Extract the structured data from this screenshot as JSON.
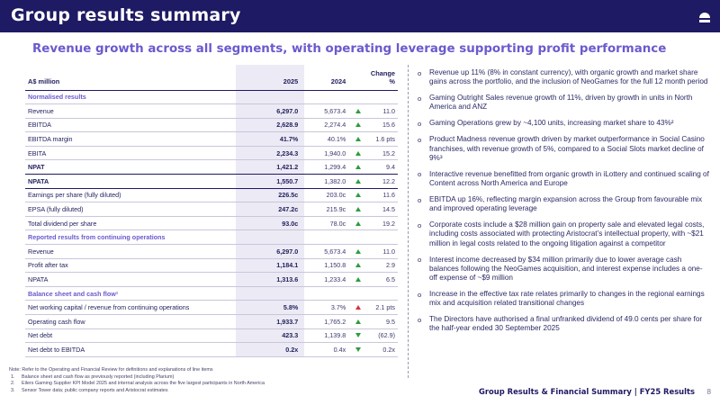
{
  "header": {
    "title": "Group results summary"
  },
  "subtitle": "Revenue growth across all segments, with operating leverage supporting profit performance",
  "table": {
    "headers": {
      "label": "A$ million",
      "y2025": "2025",
      "y2024": "2024",
      "change": "Change %"
    },
    "rows": [
      {
        "type": "section",
        "label": "Normalised results"
      },
      {
        "type": "row",
        "label": "Revenue",
        "v2025": "6,297.0",
        "v2024": "5,673.4",
        "arrow": "up",
        "change": "11.0"
      },
      {
        "type": "row",
        "label": "EBITDA",
        "v2025": "2,628.9",
        "v2024": "2,274.4",
        "arrow": "up",
        "change": "15.6"
      },
      {
        "type": "row",
        "label": "EBITDA margin",
        "v2025": "41.7%",
        "v2024": "40.1%",
        "arrow": "up",
        "change": "1.6 pts"
      },
      {
        "type": "row",
        "label": "EBITA",
        "v2025": "2,234.3",
        "v2024": "1,940.0",
        "arrow": "up",
        "change": "15.2"
      },
      {
        "type": "bold",
        "label": "NPAT",
        "v2025": "1,421.2",
        "v2024": "1,299.4",
        "arrow": "up",
        "change": "9.4"
      },
      {
        "type": "bold",
        "label": "NPATA",
        "v2025": "1,550.7",
        "v2024": "1,382.0",
        "arrow": "up",
        "change": "12.2"
      },
      {
        "type": "row",
        "label": "Earnings per share (fully diluted)",
        "v2025": "226.5c",
        "v2024": "203.0c",
        "arrow": "up",
        "change": "11.6"
      },
      {
        "type": "row",
        "label": "EPSA (fully diluted)",
        "v2025": "247.2c",
        "v2024": "215.9c",
        "arrow": "up",
        "change": "14.5"
      },
      {
        "type": "row",
        "label": "Total dividend per share",
        "v2025": "93.0c",
        "v2024": "78.0c",
        "arrow": "up",
        "change": "19.2"
      },
      {
        "type": "section",
        "label": "Reported results from continuing operations"
      },
      {
        "type": "row",
        "label": "Revenue",
        "v2025": "6,297.0",
        "v2024": "5,673.4",
        "arrow": "up",
        "change": "11.0"
      },
      {
        "type": "row",
        "label": "Profit after tax",
        "v2025": "1,184.1",
        "v2024": "1,150.8",
        "arrow": "up",
        "change": "2.9"
      },
      {
        "type": "row",
        "label": "NPATA",
        "v2025": "1,313.6",
        "v2024": "1,233.4",
        "arrow": "up",
        "change": "6.5"
      },
      {
        "type": "section",
        "label": "Balance sheet and cash flow¹"
      },
      {
        "type": "row",
        "label": "Net working capital / revenue from continuing operations",
        "v2025": "5.8%",
        "v2024": "3.7%",
        "arrow": "up-red",
        "change": "2.1 pts"
      },
      {
        "type": "row",
        "label": "Operating cash flow",
        "v2025": "1,933.7",
        "v2024": "1,765.2",
        "arrow": "up",
        "change": "9.5"
      },
      {
        "type": "row",
        "label": "Net debt",
        "v2025": "423.3",
        "v2024": "1,139.8",
        "arrow": "down",
        "change": "(62.9)"
      },
      {
        "type": "row",
        "label": "Net debt to EBITDA",
        "v2025": "0.2x",
        "v2024": "0.4x",
        "arrow": "down",
        "change": "0.2x"
      }
    ]
  },
  "bullets": [
    "Revenue up 11% (8% in constant currency), with organic growth and market share gains across the portfolio, and the inclusion of NeoGames for the full 12 month period",
    "Gaming Outright Sales revenue growth of 11%, driven by growth in units in North America and ANZ",
    "Gaming Operations grew by ~4,100 units, increasing market share to 43%²",
    "Product Madness revenue growth driven by market outperformance in Social Casino franchises, with revenue growth of 5%, compared to a Social Slots market decline of 9%³",
    "Interactive revenue benefitted from organic growth in iLottery and continued scaling of Content across North America and Europe",
    "EBITDA up 16%, reflecting margin expansion across the Group from favourable mix and improved operating leverage",
    "Corporate costs include a $28 million gain on property sale and elevated legal costs, including costs associated with protecting Aristocrat’s intellectual property, with ~$21 million in legal costs related to the ongoing litigation against a competitor",
    "Interest income decreased by $34 million primarily due to lower average cash balances following the NeoGames acquisition, and interest expense includes a one-off expense of ~$9 million",
    "Increase in the effective tax rate relates primarily to changes in the regional earnings mix and acquisition related transitional changes",
    "The Directors have authorised a final unfranked dividend of 49.0 cents per share for the half-year ended 30 September 2025"
  ],
  "bullet_marker": "o",
  "footnotes": {
    "note": "Note: Refer to the Operating and Financial Review for definitions and explanations of line items",
    "items": [
      {
        "num": "1.",
        "text": "Balance sheet and cash flow as previously reported (including Plarium)"
      },
      {
        "num": "2.",
        "text": "Eilers Gaming Supplier KPI Model 2025 and internal analysis across the five largest participants in North America"
      },
      {
        "num": "3.",
        "text": "Sensor Tower data; public company reports and Aristocrat estimates"
      }
    ]
  },
  "footer": {
    "text": "Group Results & Financial Summary | FY25 Results",
    "page": "8"
  },
  "colors": {
    "navy": "#1e1a63",
    "purple": "#6a5acd",
    "green": "#2e9b3e",
    "red": "#d6303a"
  },
  "icons": {
    "logo": "aristocrat-logo-icon"
  }
}
